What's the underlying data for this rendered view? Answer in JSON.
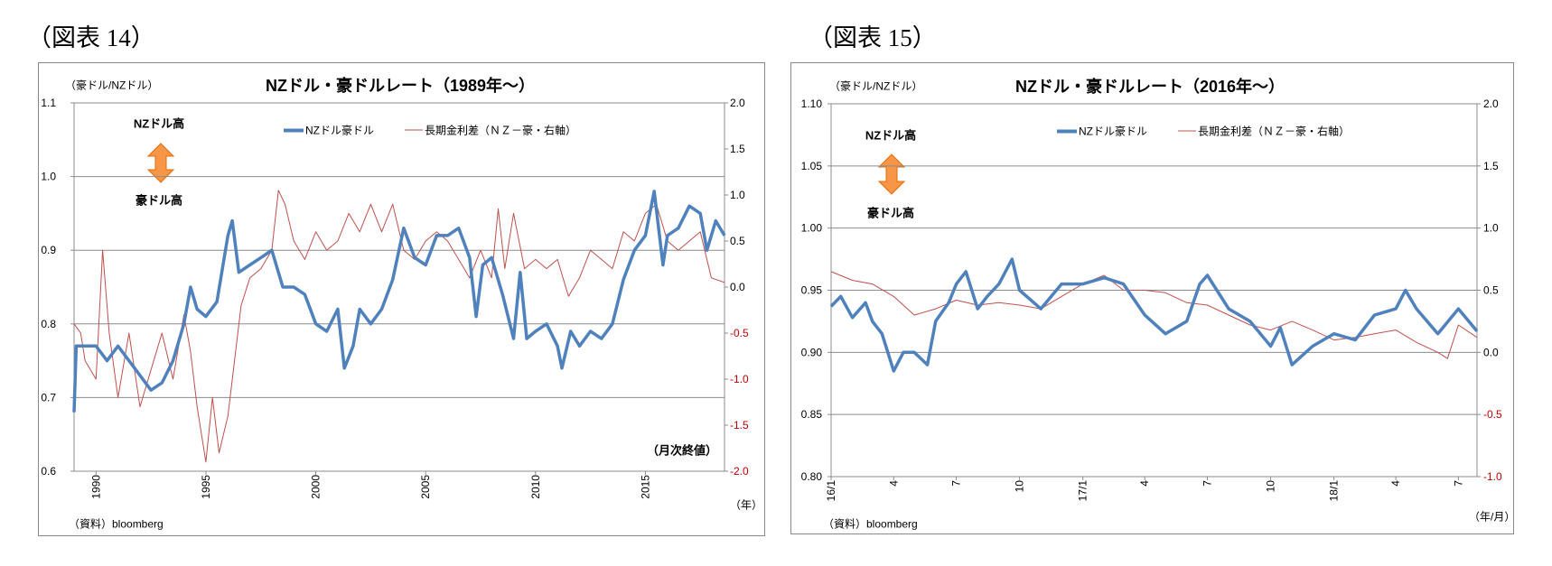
{
  "figures": [
    {
      "label": "（図表 14）"
    },
    {
      "label": "（図表 15）"
    }
  ],
  "chart_data": [
    {
      "type": "line",
      "title": "NZドル・豪ドルレート（1989年～）",
      "ylabel": "（豪ドル/NZドル）",
      "xlabel": "（年）",
      "note": "（月次終値）",
      "source": "（資料）bloomberg",
      "annotation_up": "NZドル高",
      "annotation_down": "豪ドル高",
      "xlim": [
        1989.0,
        2018.6
      ],
      "ylim": [
        0.6,
        1.1
      ],
      "y2lim": [
        -2.0,
        2.0
      ],
      "grid": true,
      "legend_position": "top-center",
      "x_ticks": [
        1990,
        1995,
        2000,
        2005,
        2010,
        2015
      ],
      "x_tick_labels": [
        "1990",
        "1995",
        "2000",
        "2005",
        "2010",
        "2015"
      ],
      "y_ticks": [
        0.6,
        0.7,
        0.8,
        0.9,
        1.0,
        1.1
      ],
      "y_tick_labels": [
        "0.6",
        "0.7",
        "0.8",
        "0.9",
        "1.0",
        "1.1"
      ],
      "y2_ticks": [
        -2.0,
        -1.5,
        -1.0,
        -0.5,
        0.0,
        0.5,
        1.0,
        1.5,
        2.0
      ],
      "y2_tick_labels": [
        "-2.0",
        "-1.5",
        "-1.0",
        "-0.5",
        "0.0",
        "0.5",
        "1.0",
        "1.5",
        "2.0"
      ],
      "series": [
        {
          "name": "NZドル豪ドル",
          "axis": "left",
          "color": "#4f81bd",
          "x": [
            1989.0,
            1989.1,
            1989.5,
            1990.0,
            1990.5,
            1991.0,
            1991.5,
            1992.0,
            1992.5,
            1993.0,
            1993.5,
            1994.0,
            1994.3,
            1994.6,
            1995.0,
            1995.5,
            1996.0,
            1996.2,
            1996.5,
            1997.0,
            1997.5,
            1998.0,
            1998.5,
            1999.0,
            1999.5,
            2000.0,
            2000.5,
            2001.0,
            2001.3,
            2001.7,
            2002.0,
            2002.5,
            2003.0,
            2003.5,
            2004.0,
            2004.5,
            2005.0,
            2005.5,
            2006.0,
            2006.5,
            2007.0,
            2007.3,
            2007.6,
            2008.0,
            2008.5,
            2009.0,
            2009.3,
            2009.6,
            2010.0,
            2010.5,
            2011.0,
            2011.2,
            2011.6,
            2012.0,
            2012.5,
            2013.0,
            2013.5,
            2014.0,
            2014.5,
            2015.0,
            2015.4,
            2015.8,
            2016.0,
            2016.5,
            2017.0,
            2017.5,
            2017.8,
            2018.2,
            2018.6
          ],
          "y": [
            0.68,
            0.77,
            0.77,
            0.77,
            0.75,
            0.77,
            0.75,
            0.73,
            0.71,
            0.72,
            0.75,
            0.8,
            0.85,
            0.82,
            0.81,
            0.83,
            0.92,
            0.94,
            0.87,
            0.88,
            0.89,
            0.9,
            0.85,
            0.85,
            0.84,
            0.8,
            0.79,
            0.82,
            0.74,
            0.77,
            0.82,
            0.8,
            0.82,
            0.86,
            0.93,
            0.89,
            0.88,
            0.92,
            0.92,
            0.93,
            0.89,
            0.81,
            0.88,
            0.89,
            0.84,
            0.78,
            0.87,
            0.78,
            0.79,
            0.8,
            0.77,
            0.74,
            0.79,
            0.77,
            0.79,
            0.78,
            0.8,
            0.86,
            0.9,
            0.92,
            0.98,
            0.88,
            0.92,
            0.93,
            0.96,
            0.95,
            0.9,
            0.94,
            0.92
          ]
        },
        {
          "name": "長期金利差（ＮＺ－豪・右軸）",
          "axis": "right",
          "color": "#c0504d",
          "x": [
            1989.0,
            1989.3,
            1989.5,
            1990.0,
            1990.3,
            1990.6,
            1991.0,
            1991.5,
            1992.0,
            1992.5,
            1993.0,
            1993.5,
            1994.0,
            1994.3,
            1994.6,
            1995.0,
            1995.3,
            1995.6,
            1996.0,
            1996.3,
            1996.6,
            1997.0,
            1997.5,
            1998.0,
            1998.3,
            1998.6,
            1999.0,
            1999.5,
            2000.0,
            2000.5,
            2001.0,
            2001.5,
            2002.0,
            2002.5,
            2003.0,
            2003.5,
            2004.0,
            2004.5,
            2005.0,
            2005.5,
            2006.0,
            2006.5,
            2007.0,
            2007.5,
            2008.0,
            2008.3,
            2008.6,
            2009.0,
            2009.5,
            2010.0,
            2010.5,
            2011.0,
            2011.5,
            2012.0,
            2012.5,
            2013.0,
            2013.5,
            2014.0,
            2014.5,
            2015.0,
            2015.5,
            2016.0,
            2016.5,
            2017.0,
            2017.5,
            2018.0,
            2018.6
          ],
          "y": [
            -0.4,
            -0.5,
            -0.8,
            -1.0,
            0.4,
            -0.5,
            -1.2,
            -0.5,
            -1.3,
            -0.9,
            -0.5,
            -1.0,
            -0.3,
            -0.7,
            -1.3,
            -1.9,
            -1.2,
            -1.8,
            -1.4,
            -0.8,
            -0.2,
            0.1,
            0.2,
            0.4,
            1.05,
            0.9,
            0.5,
            0.3,
            0.6,
            0.4,
            0.5,
            0.8,
            0.6,
            0.9,
            0.6,
            0.9,
            0.4,
            0.3,
            0.5,
            0.6,
            0.5,
            0.3,
            0.1,
            0.4,
            0.1,
            0.85,
            0.2,
            0.8,
            0.2,
            0.3,
            0.2,
            0.3,
            -0.1,
            0.1,
            0.4,
            0.3,
            0.2,
            0.6,
            0.5,
            0.8,
            0.9,
            0.5,
            0.4,
            0.5,
            0.6,
            0.1,
            0.05
          ]
        }
      ]
    },
    {
      "type": "line",
      "title": "NZドル・豪ドルレート（2016年～）",
      "ylabel": "（豪ドル/NZドル）",
      "xlabel": "（年/月）",
      "source": "（資料）bloomberg",
      "annotation_up": "NZドル高",
      "annotation_down": "豪ドル高",
      "xlim": [
        "2016-01-01",
        "2018-07-28"
      ],
      "ylim": [
        0.8,
        1.1
      ],
      "y2lim": [
        -1.0,
        2.0
      ],
      "grid": true,
      "legend_position": "top-center",
      "x_ticks": [
        "2016-01-01",
        "2016-04-01",
        "2016-07-01",
        "2016-10-01",
        "2017-01-01",
        "2017-04-01",
        "2017-07-01",
        "2017-10-01",
        "2018-01-01",
        "2018-04-01",
        "2018-07-01"
      ],
      "x_tick_labels": [
        "16/1",
        "4",
        "7",
        "10",
        "17/1",
        "4",
        "7",
        "10",
        "18/1",
        "4",
        "7"
      ],
      "y_ticks": [
        0.8,
        0.85,
        0.9,
        0.95,
        1.0,
        1.05,
        1.1
      ],
      "y_tick_labels": [
        "0.80",
        "0.85",
        "0.90",
        "0.95",
        "1.00",
        "1.05",
        "1.10"
      ],
      "y2_ticks": [
        -1.0,
        -0.5,
        0.0,
        0.5,
        1.0,
        1.5,
        2.0
      ],
      "y2_tick_labels": [
        "-1.0",
        "-0.5",
        "0.0",
        "0.5",
        "1.0",
        "1.5",
        "2.0"
      ],
      "series": [
        {
          "name": "NZドル豪ドル",
          "axis": "left",
          "color": "#4f81bd",
          "x": [
            "2016-01-01",
            "2016-01-15",
            "2016-02-01",
            "2016-02-20",
            "2016-03-01",
            "2016-03-15",
            "2016-04-01",
            "2016-04-15",
            "2016-05-01",
            "2016-05-20",
            "2016-06-01",
            "2016-06-20",
            "2016-07-01",
            "2016-07-15",
            "2016-08-01",
            "2016-08-15",
            "2016-09-01",
            "2016-09-20",
            "2016-10-01",
            "2016-11-01",
            "2016-12-01",
            "2017-01-01",
            "2017-02-01",
            "2017-03-01",
            "2017-04-01",
            "2017-05-01",
            "2017-06-01",
            "2017-06-20",
            "2017-07-01",
            "2017-08-01",
            "2017-09-01",
            "2017-10-01",
            "2017-10-15",
            "2017-11-01",
            "2017-12-01",
            "2018-01-01",
            "2018-02-01",
            "2018-03-01",
            "2018-04-01",
            "2018-04-15",
            "2018-05-01",
            "2018-06-01",
            "2018-07-01",
            "2018-07-28"
          ],
          "y": [
            0.937,
            0.945,
            0.928,
            0.94,
            0.925,
            0.915,
            0.885,
            0.9,
            0.9,
            0.89,
            0.925,
            0.94,
            0.955,
            0.965,
            0.935,
            0.945,
            0.955,
            0.975,
            0.95,
            0.935,
            0.955,
            0.955,
            0.96,
            0.955,
            0.93,
            0.915,
            0.925,
            0.955,
            0.962,
            0.935,
            0.925,
            0.905,
            0.92,
            0.89,
            0.905,
            0.915,
            0.91,
            0.93,
            0.935,
            0.95,
            0.935,
            0.915,
            0.935,
            0.917
          ]
        },
        {
          "name": "長期金利差（ＮＺ－豪・右軸）",
          "axis": "right",
          "color": "#c0504d",
          "x": [
            "2016-01-01",
            "2016-02-01",
            "2016-03-01",
            "2016-04-01",
            "2016-05-01",
            "2016-06-01",
            "2016-07-01",
            "2016-08-01",
            "2016-09-01",
            "2016-10-01",
            "2016-11-01",
            "2016-12-01",
            "2017-01-01",
            "2017-02-01",
            "2017-03-01",
            "2017-04-01",
            "2017-05-01",
            "2017-06-01",
            "2017-07-01",
            "2017-08-01",
            "2017-09-01",
            "2017-10-01",
            "2017-11-01",
            "2017-12-01",
            "2018-01-01",
            "2018-02-01",
            "2018-03-01",
            "2018-04-01",
            "2018-05-01",
            "2018-06-01",
            "2018-06-15",
            "2018-07-01",
            "2018-07-28"
          ],
          "y": [
            0.65,
            0.58,
            0.55,
            0.45,
            0.3,
            0.35,
            0.42,
            0.38,
            0.4,
            0.38,
            0.35,
            0.45,
            0.55,
            0.62,
            0.5,
            0.5,
            0.48,
            0.4,
            0.38,
            0.3,
            0.22,
            0.18,
            0.25,
            0.18,
            0.1,
            0.12,
            0.15,
            0.18,
            0.08,
            0.0,
            -0.05,
            0.22,
            0.12
          ]
        }
      ]
    }
  ]
}
